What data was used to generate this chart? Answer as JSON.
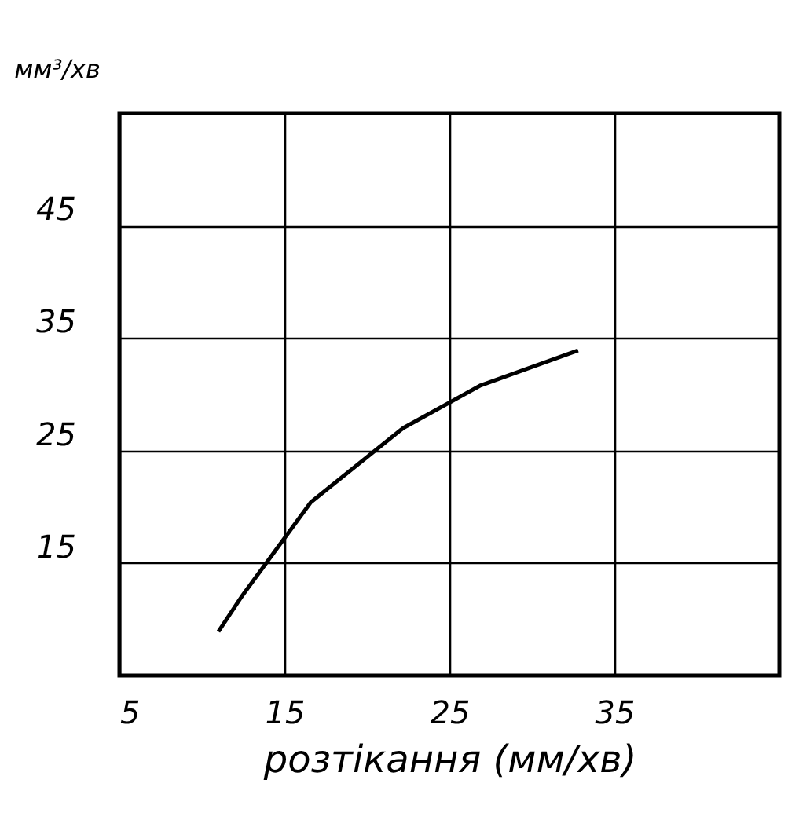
{
  "chart_data": {
    "type": "line",
    "xlabel": "розтікання (мм/хв)",
    "ylabel": "мм³/хв",
    "x": [
      11,
      12.4,
      16.6,
      22.2,
      26.9,
      32.8
    ],
    "series": [
      {
        "color": "#000000",
        "values": [
          8.9,
          12,
          20.4,
          27,
          30.8,
          33.9
        ]
      }
    ],
    "xlim": [
      5,
      45
    ],
    "xticks": [
      5,
      15,
      25,
      35
    ],
    "ylim": [
      5,
      55
    ],
    "yticks": [
      15,
      25,
      35,
      45
    ],
    "grid": true,
    "marker": "none",
    "line_style": "solid"
  }
}
